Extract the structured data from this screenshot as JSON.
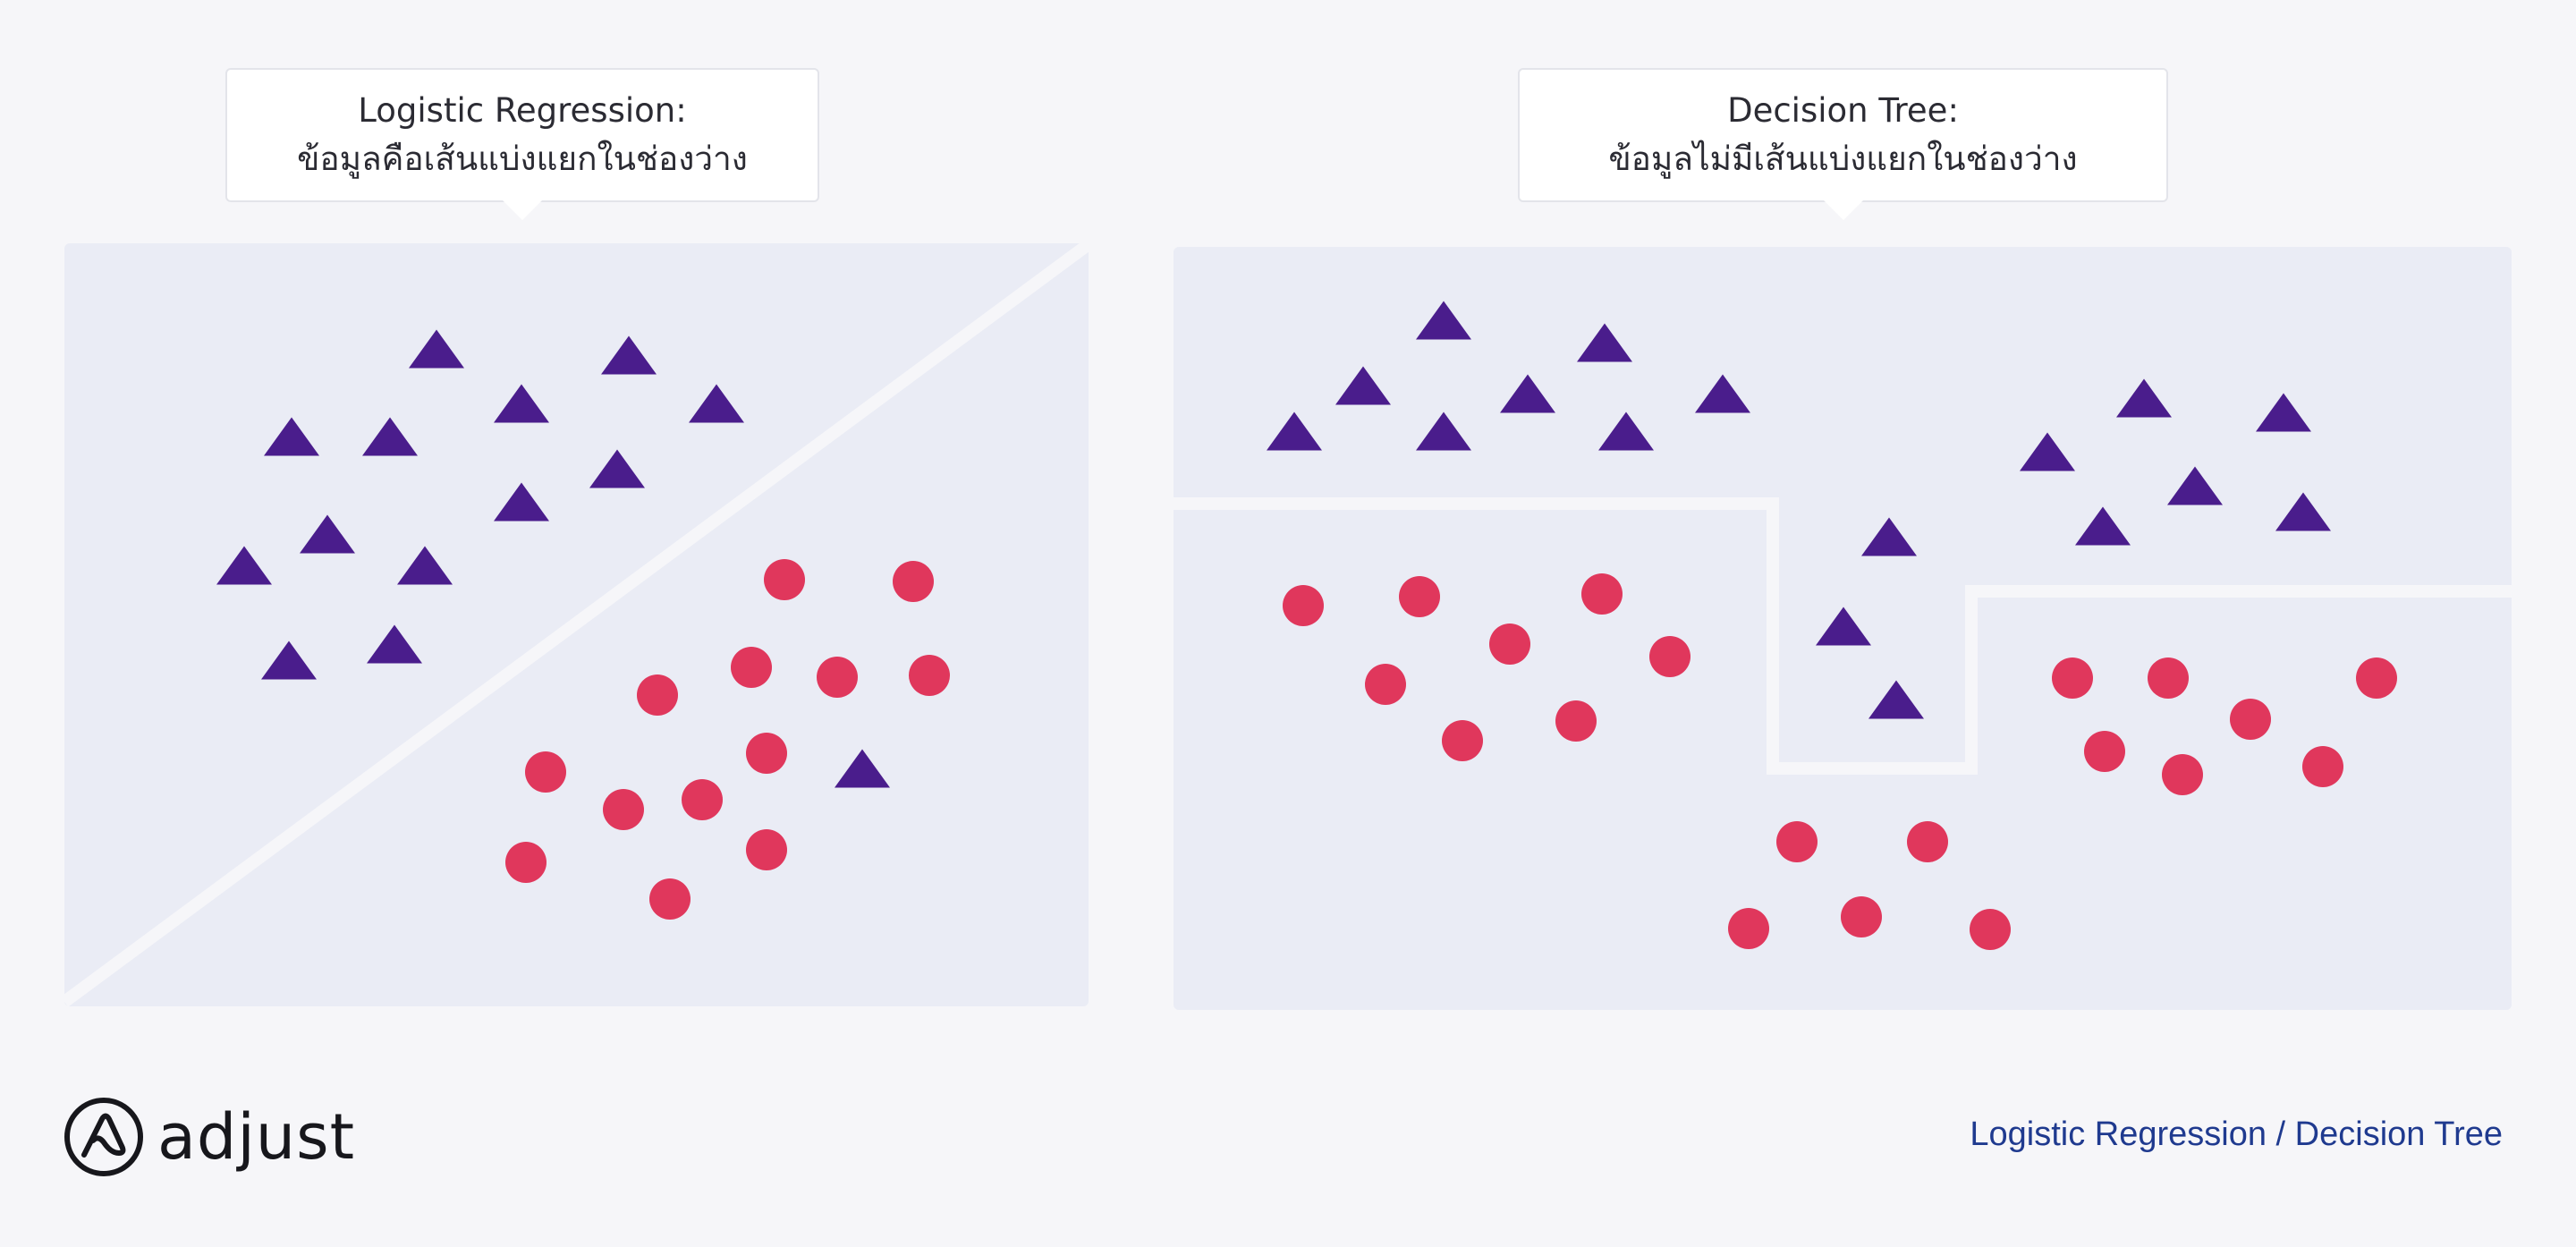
{
  "panels": [
    {
      "title": "Logistic Regression:",
      "subtitle": "ข้อมูลคือเส้นแบ่งแยกในช่องว่าง"
    },
    {
      "title": "Decision Tree:",
      "subtitle": "ข้อมูลไม่มีเส้นแบ่งแยกในช่องว่าง"
    }
  ],
  "footer": {
    "logo_text": "adjust",
    "caption": "Logistic Regression / Decision Tree"
  },
  "colors": {
    "triangle": "#4a1d8c",
    "circle": "#e0375c",
    "panel_bg": "#eaecf5",
    "boundary": "#f6f6f9",
    "caption": "#1f3a8f"
  },
  "icons": {
    "logo_mark": "adjust-logo-icon"
  }
}
